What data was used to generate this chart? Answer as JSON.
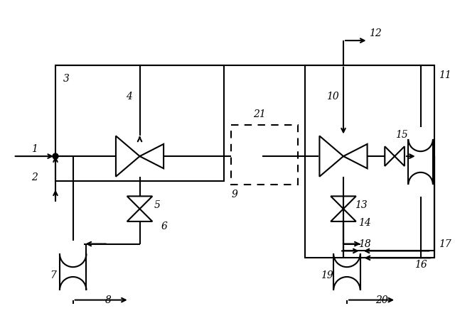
{
  "bg_color": "#ffffff",
  "line_color": "#000000",
  "lw": 1.5,
  "fig_w": 6.4,
  "fig_h": 4.55
}
